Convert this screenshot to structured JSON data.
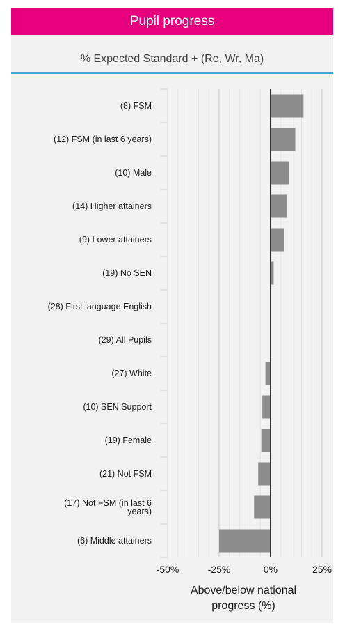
{
  "header": {
    "title": "Pupil progress"
  },
  "chart_data": {
    "type": "bar",
    "orientation": "horizontal",
    "title": "% Expected Standard + (Re, Wr, Ma)",
    "xlabel": "Above/below national progress (%)",
    "xlabel_lines": [
      "Above/below national",
      "progress (%)"
    ],
    "xlim": [
      -50,
      25
    ],
    "xticks": [
      -50,
      -25,
      0,
      25
    ],
    "xtick_labels": [
      "-50%",
      "-25%",
      "0%",
      "25%"
    ],
    "grid": true,
    "colors": {
      "bar": "#8c8c8c",
      "zero_line": "#333333",
      "grid": "#d9d9d9",
      "accent": "#e6007e",
      "rule": "#41a8d8"
    },
    "categories": [
      {
        "label": "(8) FSM",
        "value": 16
      },
      {
        "label": "(12) FSM (in last 6 years)",
        "value": 12
      },
      {
        "label": "(10) Male",
        "value": 9
      },
      {
        "label": "(14) Higher attainers",
        "value": 8
      },
      {
        "label": "(9) Lower attainers",
        "value": 6.5
      },
      {
        "label": "(19) No SEN",
        "value": 1.5
      },
      {
        "label": "(28) First language English",
        "value": 0
      },
      {
        "label": "(29) All Pupils",
        "value": 0
      },
      {
        "label": "(27) White",
        "value": -2.5
      },
      {
        "label": "(10) SEN Support",
        "value": -4
      },
      {
        "label": "(19) Female",
        "value": -4.5
      },
      {
        "label": "(21) Not FSM",
        "value": -6
      },
      {
        "label": "(17) Not FSM (in last 6 years)",
        "label_lines": [
          "(17) Not FSM (in last 6",
          "years)"
        ],
        "value": -8
      },
      {
        "label": "(6) Middle attainers",
        "value": -25
      }
    ]
  }
}
